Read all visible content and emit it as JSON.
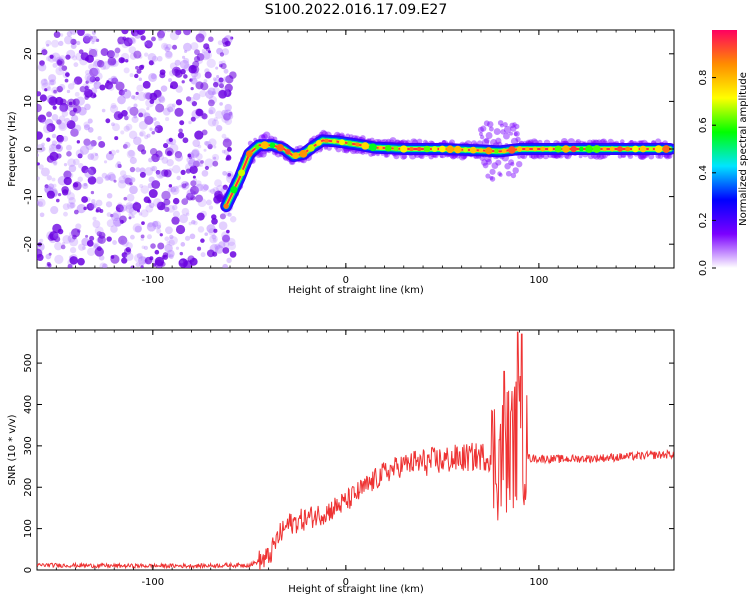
{
  "figure": {
    "title": "S100.2022.016.17.09.E27"
  },
  "chart_data": [
    {
      "type": "heatmap",
      "title": "S100.2022.016.17.09.E27",
      "xlabel": "Height of straight line (km)",
      "ylabel": "Frequency (Hz)",
      "xlim": [
        -160,
        170
      ],
      "ylim": [
        -25,
        25
      ],
      "x_ticks": [
        -100,
        0,
        100
      ],
      "x_tick_labels": [
        "-100",
        "0",
        "100"
      ],
      "y_ticks": [
        -20,
        -10,
        0,
        10,
        20
      ],
      "y_tick_labels": [
        "-20",
        "-10",
        "0",
        "10",
        "20"
      ],
      "colorbar": {
        "label": "Normalized spectral amplitude",
        "range": [
          0,
          1
        ],
        "ticks": [
          0.0,
          0.2,
          0.4,
          0.6,
          0.8
        ],
        "tick_labels": [
          "0.0",
          "0.2",
          "0.4",
          "0.6",
          "0.8"
        ],
        "colors": [
          "#ffffff",
          "#7b00ff",
          "#0000ff",
          "#00e5ff",
          "#00ff00",
          "#ffff00",
          "#ff8c00",
          "#ff0060"
        ]
      },
      "ridge": {
        "description_points": [
          {
            "x": -62,
            "y": -12
          },
          {
            "x": -55,
            "y": -6
          },
          {
            "x": -50,
            "y": -1
          },
          {
            "x": -45,
            "y": 0.8
          },
          {
            "x": -38,
            "y": 0.8
          },
          {
            "x": -32,
            "y": 0
          },
          {
            "x": -27,
            "y": -1.5
          },
          {
            "x": -22,
            "y": -1
          },
          {
            "x": -17,
            "y": 0.5
          },
          {
            "x": -12,
            "y": 1.8
          },
          {
            "x": -5,
            "y": 1.6
          },
          {
            "x": 5,
            "y": 1
          },
          {
            "x": 15,
            "y": 0.3
          },
          {
            "x": 30,
            "y": 0
          },
          {
            "x": 50,
            "y": 0
          },
          {
            "x": 70,
            "y": -0.3
          },
          {
            "x": 80,
            "y": -0.5
          },
          {
            "x": 90,
            "y": 0
          },
          {
            "x": 120,
            "y": 0
          },
          {
            "x": 168,
            "y": 0
          }
        ],
        "peak_amplitude": 0.95
      },
      "noise_region": {
        "x_from": -160,
        "x_to": -58,
        "amplitude": 0.15
      }
    },
    {
      "type": "line",
      "xlabel": "Height of straight line (km)",
      "ylabel": "SNR (10 * v/v)",
      "xlim": [
        -160,
        170
      ],
      "ylim": [
        0,
        580
      ],
      "x_ticks": [
        -100,
        0,
        100
      ],
      "x_tick_labels": [
        "-100",
        "0",
        "100"
      ],
      "y_ticks": [
        0,
        100,
        200,
        300,
        400,
        500
      ],
      "y_tick_labels": [
        "0",
        "100",
        "200",
        "300",
        "400",
        "500"
      ],
      "series": [
        {
          "color": "#ee3333",
          "trend": [
            {
              "x": -160,
              "y": 12
            },
            {
              "x": -120,
              "y": 10
            },
            {
              "x": -80,
              "y": 10
            },
            {
              "x": -50,
              "y": 12
            },
            {
              "x": -40,
              "y": 30
            },
            {
              "x": -35,
              "y": 80
            },
            {
              "x": -30,
              "y": 110
            },
            {
              "x": -20,
              "y": 125
            },
            {
              "x": -10,
              "y": 140
            },
            {
              "x": 0,
              "y": 165
            },
            {
              "x": 10,
              "y": 200
            },
            {
              "x": 20,
              "y": 235
            },
            {
              "x": 30,
              "y": 255
            },
            {
              "x": 50,
              "y": 265
            },
            {
              "x": 70,
              "y": 275
            },
            {
              "x": 80,
              "y": 270
            },
            {
              "x": 85,
              "y": 300
            },
            {
              "x": 90,
              "y": 320
            },
            {
              "x": 95,
              "y": 270
            },
            {
              "x": 110,
              "y": 268
            },
            {
              "x": 130,
              "y": 270
            },
            {
              "x": 150,
              "y": 275
            },
            {
              "x": 170,
              "y": 280
            }
          ],
          "notable_peaks": [
            {
              "x": 82,
              "y": 480
            },
            {
              "x": 89,
              "y": 575
            },
            {
              "x": 91,
              "y": 570
            }
          ]
        }
      ]
    }
  ]
}
